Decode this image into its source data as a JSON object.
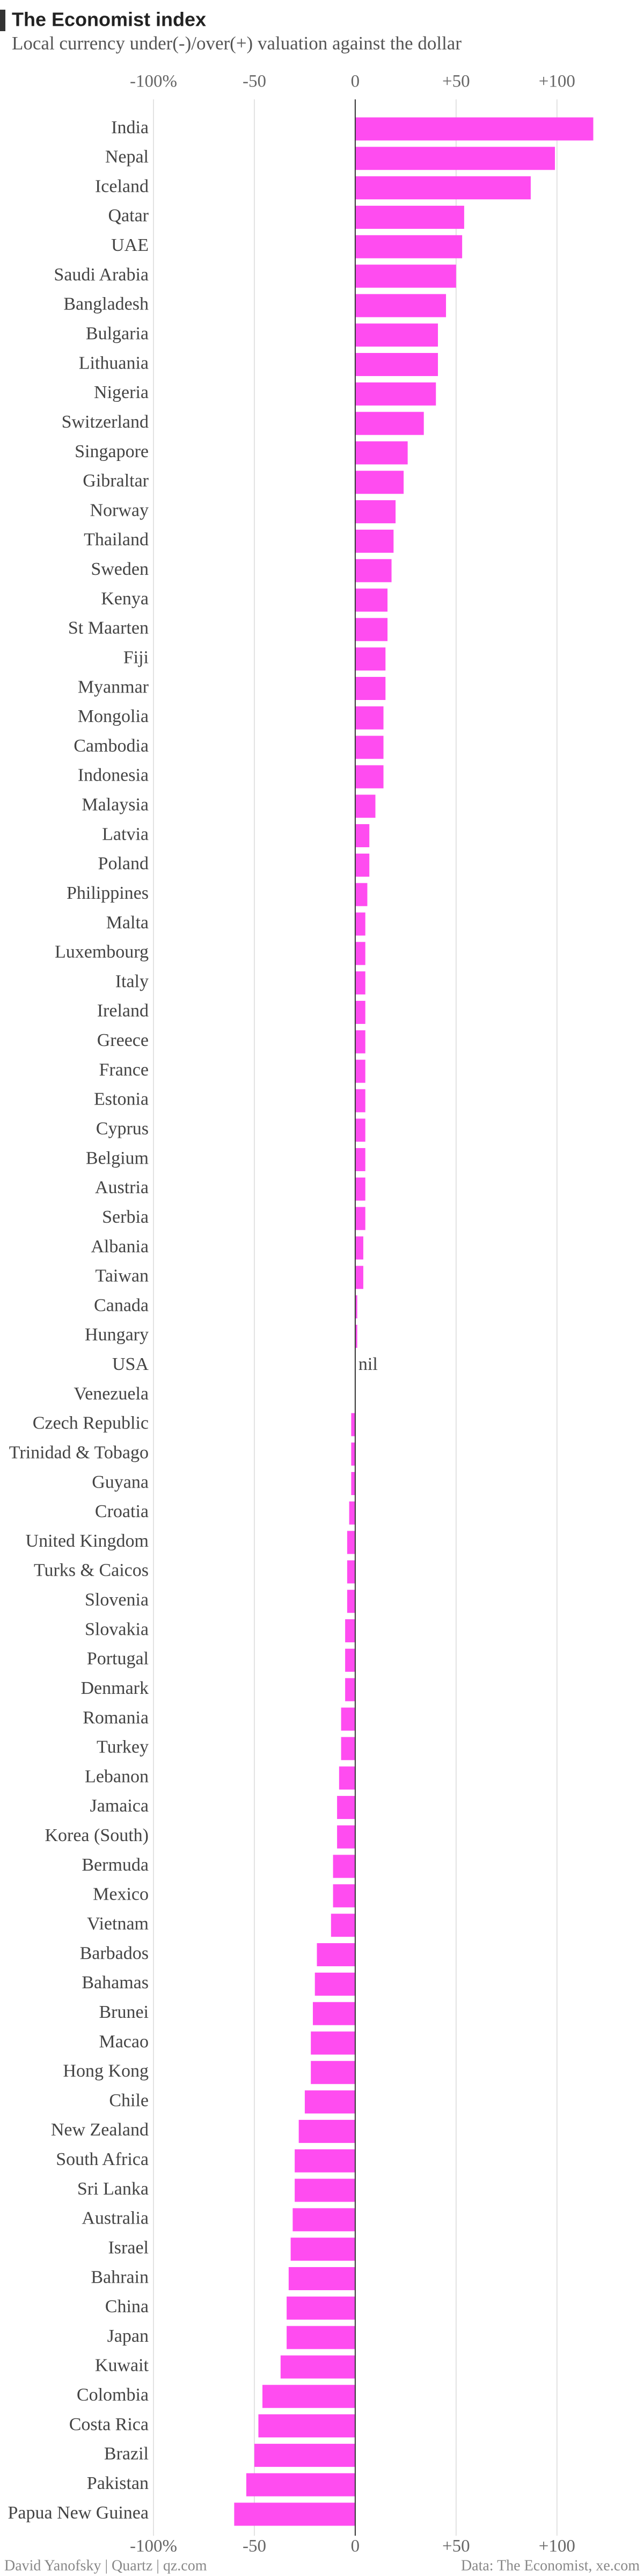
{
  "chart_data": {
    "type": "bar",
    "orientation": "horizontal",
    "title": "The Economist index",
    "subtitle": "Local currency under(-)/over(+) valuation against the dollar",
    "footer_left": "David Yanofsky | Quartz | qz.com",
    "footer_right": "Data: The Economist, xe.com",
    "color": "#ff4cf0",
    "xlim": [
      -100,
      120
    ],
    "xticks": [
      {
        "value": -100,
        "label": "-100%"
      },
      {
        "value": -50,
        "label": "-50"
      },
      0,
      {
        "value": 50,
        "label": "+50"
      },
      {
        "value": 100,
        "label": "+100"
      }
    ],
    "grid": true,
    "categories": [
      "India",
      "Nepal",
      "Iceland",
      "Qatar",
      "UAE",
      "Saudi Arabia",
      "Bangladesh",
      "Bulgaria",
      "Lithuania",
      "Nigeria",
      "Switzerland",
      "Singapore",
      "Gibraltar",
      "Norway",
      "Thailand",
      "Sweden",
      "Kenya",
      "St Maarten",
      "Fiji",
      "Myanmar",
      "Mongolia",
      "Cambodia",
      "Indonesia",
      "Malaysia",
      "Latvia",
      "Poland",
      "Philippines",
      "Malta",
      "Luxembourg",
      "Italy",
      "Ireland",
      "Greece",
      "France",
      "Estonia",
      "Cyprus",
      "Belgium",
      "Austria",
      "Serbia",
      "Albania",
      "Taiwan",
      "Canada",
      "Hungary",
      "USA",
      "Venezuela",
      "Czech Republic",
      "Trinidad & Tobago",
      "Guyana",
      "Croatia",
      "United Kingdom",
      "Turks & Caicos",
      "Slovenia",
      "Slovakia",
      "Portugal",
      "Denmark",
      "Romania",
      "Turkey",
      "Lebanon",
      "Jamaica",
      "Korea (South)",
      "Bermuda",
      "Mexico",
      "Vietnam",
      "Barbados",
      "Bahamas",
      "Brunei",
      "Macao",
      "Hong Kong",
      "Chile",
      "New Zealand",
      "South Africa",
      "Sri Lanka",
      "Australia",
      "Israel",
      "Bahrain",
      "China",
      "Japan",
      "Kuwait",
      "Colombia",
      "Costa Rica",
      "Brazil",
      "Pakistan",
      "Papua New Guinea"
    ],
    "values": [
      118,
      99,
      87,
      54,
      53,
      50,
      45,
      41,
      41,
      40,
      34,
      26,
      24,
      20,
      19,
      18,
      16,
      16,
      15,
      15,
      14,
      14,
      14,
      10,
      7,
      7,
      6,
      5,
      5,
      5,
      5,
      5,
      5,
      5,
      5,
      5,
      5,
      5,
      4,
      4,
      1,
      1,
      0,
      null,
      -2,
      -2,
      -2,
      -3,
      -4,
      -4,
      -4,
      -5,
      -5,
      -5,
      -7,
      -7,
      -8,
      -9,
      -9,
      -11,
      -11,
      -12,
      -19,
      -20,
      -21,
      -22,
      -22,
      -25,
      -28,
      -30,
      -30,
      -31,
      -32,
      -33,
      -34,
      -34,
      -37,
      -46,
      -48,
      -50,
      -54,
      -60
    ],
    "value_labels": [
      null,
      null,
      null,
      null,
      null,
      null,
      null,
      null,
      null,
      null,
      null,
      null,
      null,
      null,
      null,
      null,
      null,
      null,
      null,
      null,
      null,
      null,
      null,
      null,
      null,
      null,
      null,
      null,
      null,
      null,
      null,
      null,
      null,
      null,
      null,
      null,
      null,
      null,
      null,
      null,
      null,
      null,
      "nil",
      null,
      null,
      null,
      null,
      null,
      null,
      null,
      null,
      null,
      null,
      null,
      null,
      null,
      null,
      null,
      null,
      null,
      null,
      null,
      null,
      null,
      null,
      null,
      null,
      null,
      null,
      null,
      null,
      null,
      null,
      null,
      null,
      null,
      null,
      null,
      null,
      null,
      null,
      null
    ]
  }
}
